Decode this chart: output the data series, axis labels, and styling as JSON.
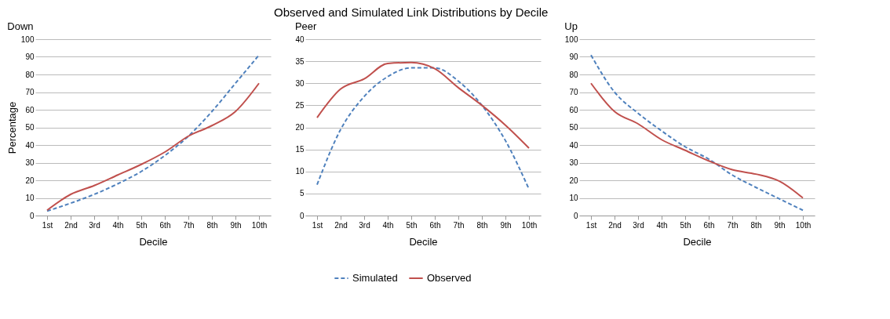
{
  "chart_data": [
    {
      "type": "line",
      "title": "Down",
      "annotations": [
        "Observed and Simulated Link Distributions by Decile"
      ],
      "xlabel": "Decile",
      "ylabel": "Percentage",
      "categories": [
        "1st",
        "2nd",
        "3rd",
        "4th",
        "5th",
        "6th",
        "7th",
        "8th",
        "9th",
        "10th"
      ],
      "ylim": [
        0,
        100
      ],
      "yticks": [
        0,
        10,
        20,
        30,
        40,
        50,
        60,
        70,
        80,
        90,
        100
      ],
      "grid": "y",
      "legend": "bottom",
      "series": [
        {
          "name": "Simulated",
          "color": "#4f81bd",
          "line_style": "dashed",
          "values": [
            2.5,
            7,
            12,
            18,
            25,
            34,
            45,
            59,
            75,
            91
          ]
        },
        {
          "name": "Observed",
          "color": "#c0504d",
          "line_style": "solid",
          "values": [
            3,
            12,
            17,
            23,
            29,
            36,
            45,
            51,
            59,
            75
          ]
        }
      ]
    },
    {
      "type": "line",
      "title": "Peer",
      "xlabel": "Decile",
      "categories": [
        "1st",
        "2nd",
        "3rd",
        "4th",
        "5th",
        "6th",
        "7th",
        "8th",
        "9th",
        "10th"
      ],
      "ylim": [
        0,
        40
      ],
      "yticks": [
        0,
        5,
        10,
        15,
        20,
        25,
        30,
        35,
        40
      ],
      "grid": "y",
      "legend": "bottom",
      "series": [
        {
          "name": "Simulated",
          "color": "#4f81bd",
          "line_style": "dashed",
          "values": [
            7,
            19.5,
            27,
            31.5,
            33.5,
            33.5,
            30.5,
            25,
            17,
            6
          ]
        },
        {
          "name": "Observed",
          "color": "#c0504d",
          "line_style": "solid",
          "values": [
            22.2,
            28.7,
            31,
            34.5,
            34.7,
            33.3,
            29,
            25,
            20.5,
            15.3
          ]
        }
      ]
    },
    {
      "type": "line",
      "title": "Up",
      "xlabel": "Decile",
      "categories": [
        "1st",
        "2nd",
        "3rd",
        "4th",
        "5th",
        "6th",
        "7th",
        "8th",
        "9th",
        "10th"
      ],
      "ylim": [
        0,
        100
      ],
      "yticks": [
        0,
        10,
        20,
        30,
        40,
        50,
        60,
        70,
        80,
        90,
        100
      ],
      "grid": "y",
      "legend": "bottom",
      "series": [
        {
          "name": "Simulated",
          "color": "#4f81bd",
          "line_style": "dashed",
          "values": [
            91,
            70,
            58,
            48,
            39,
            32,
            23,
            16,
            9.5,
            3
          ]
        },
        {
          "name": "Observed",
          "color": "#c0504d",
          "line_style": "solid",
          "values": [
            75,
            59,
            52,
            43,
            37,
            31,
            26,
            23.5,
            19.5,
            10
          ]
        }
      ]
    }
  ]
}
